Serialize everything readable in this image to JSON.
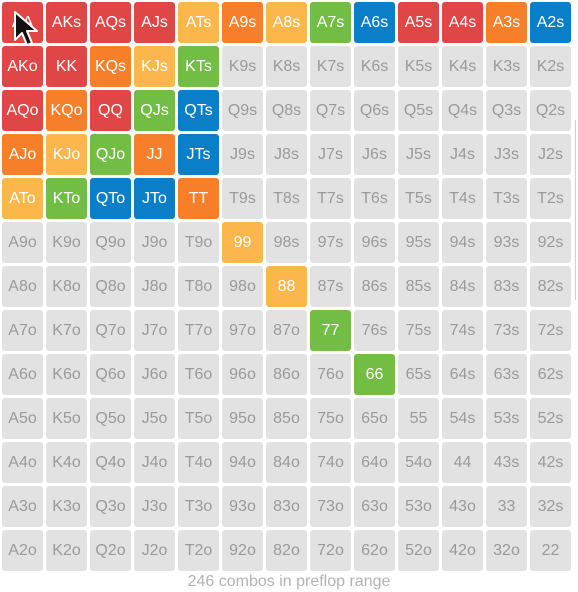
{
  "colors": {
    "default_bg": "#e2e2e2",
    "default_text": "#9a9a9a",
    "highlight_text": "#ffffff",
    "red": "#e04646",
    "orange": "#f77f2a",
    "yellow": "#fbb64c",
    "green": "#72be44",
    "blue": "#0a7fc7"
  },
  "grid": {
    "rows": [
      [
        "AA",
        "AKs",
        "AQs",
        "AJs",
        "ATs",
        "A9s",
        "A8s",
        "A7s",
        "A6s",
        "A5s",
        "A4s",
        "A3s",
        "A2s"
      ],
      [
        "AKo",
        "KK",
        "KQs",
        "KJs",
        "KTs",
        "K9s",
        "K8s",
        "K7s",
        "K6s",
        "K5s",
        "K4s",
        "K3s",
        "K2s"
      ],
      [
        "AQo",
        "KQo",
        "QQ",
        "QJs",
        "QTs",
        "Q9s",
        "Q8s",
        "Q7s",
        "Q6s",
        "Q5s",
        "Q4s",
        "Q3s",
        "Q2s"
      ],
      [
        "AJo",
        "KJo",
        "QJo",
        "JJ",
        "JTs",
        "J9s",
        "J8s",
        "J7s",
        "J6s",
        "J5s",
        "J4s",
        "J3s",
        "J2s"
      ],
      [
        "ATo",
        "KTo",
        "QTo",
        "JTo",
        "TT",
        "T9s",
        "T8s",
        "T7s",
        "T6s",
        "T5s",
        "T4s",
        "T3s",
        "T2s"
      ],
      [
        "A9o",
        "K9o",
        "Q9o",
        "J9o",
        "T9o",
        "99",
        "98s",
        "97s",
        "96s",
        "95s",
        "94s",
        "93s",
        "92s"
      ],
      [
        "A8o",
        "K8o",
        "Q8o",
        "J8o",
        "T8o",
        "98o",
        "88",
        "87s",
        "86s",
        "85s",
        "84s",
        "83s",
        "82s"
      ],
      [
        "A7o",
        "K7o",
        "Q7o",
        "J7o",
        "T7o",
        "97o",
        "87o",
        "77",
        "76s",
        "75s",
        "74s",
        "73s",
        "72s"
      ],
      [
        "A6o",
        "K6o",
        "Q6o",
        "J6o",
        "T6o",
        "96o",
        "86o",
        "76o",
        "66",
        "65s",
        "64s",
        "63s",
        "62s"
      ],
      [
        "A5o",
        "K5o",
        "Q5o",
        "J5o",
        "T5o",
        "95o",
        "85o",
        "75o",
        "65o",
        "55",
        "54s",
        "53s",
        "52s"
      ],
      [
        "A4o",
        "K4o",
        "Q4o",
        "J4o",
        "T4o",
        "94o",
        "84o",
        "74o",
        "64o",
        "54o",
        "44",
        "43s",
        "42s"
      ],
      [
        "A3o",
        "K3o",
        "Q3o",
        "J3o",
        "T3o",
        "93o",
        "83o",
        "73o",
        "63o",
        "53o",
        "43o",
        "33",
        "32s"
      ],
      [
        "A2o",
        "K2o",
        "Q2o",
        "J2o",
        "T2o",
        "92o",
        "82o",
        "72o",
        "62o",
        "52o",
        "42o",
        "32o",
        "22"
      ]
    ],
    "highlights": {
      "AA": "red",
      "AKs": "red",
      "AQs": "red",
      "AJs": "red",
      "ATs": "yellow",
      "A9s": "orange",
      "A8s": "yellow",
      "A7s": "green",
      "A6s": "blue",
      "A5s": "red",
      "A4s": "red",
      "A3s": "orange",
      "A2s": "blue",
      "AKo": "red",
      "KK": "red",
      "KQs": "orange",
      "KJs": "yellow",
      "KTs": "green",
      "AQo": "red",
      "KQo": "orange",
      "QQ": "red",
      "QJs": "green",
      "QTs": "blue",
      "AJo": "orange",
      "KJo": "yellow",
      "QJo": "green",
      "JJ": "orange",
      "JTs": "blue",
      "ATo": "yellow",
      "KTo": "green",
      "QTo": "blue",
      "JTo": "blue",
      "TT": "orange",
      "99": "yellow",
      "88": "yellow",
      "77": "green",
      "66": "green"
    }
  },
  "footer": {
    "text": "246 combos in preflop range"
  }
}
